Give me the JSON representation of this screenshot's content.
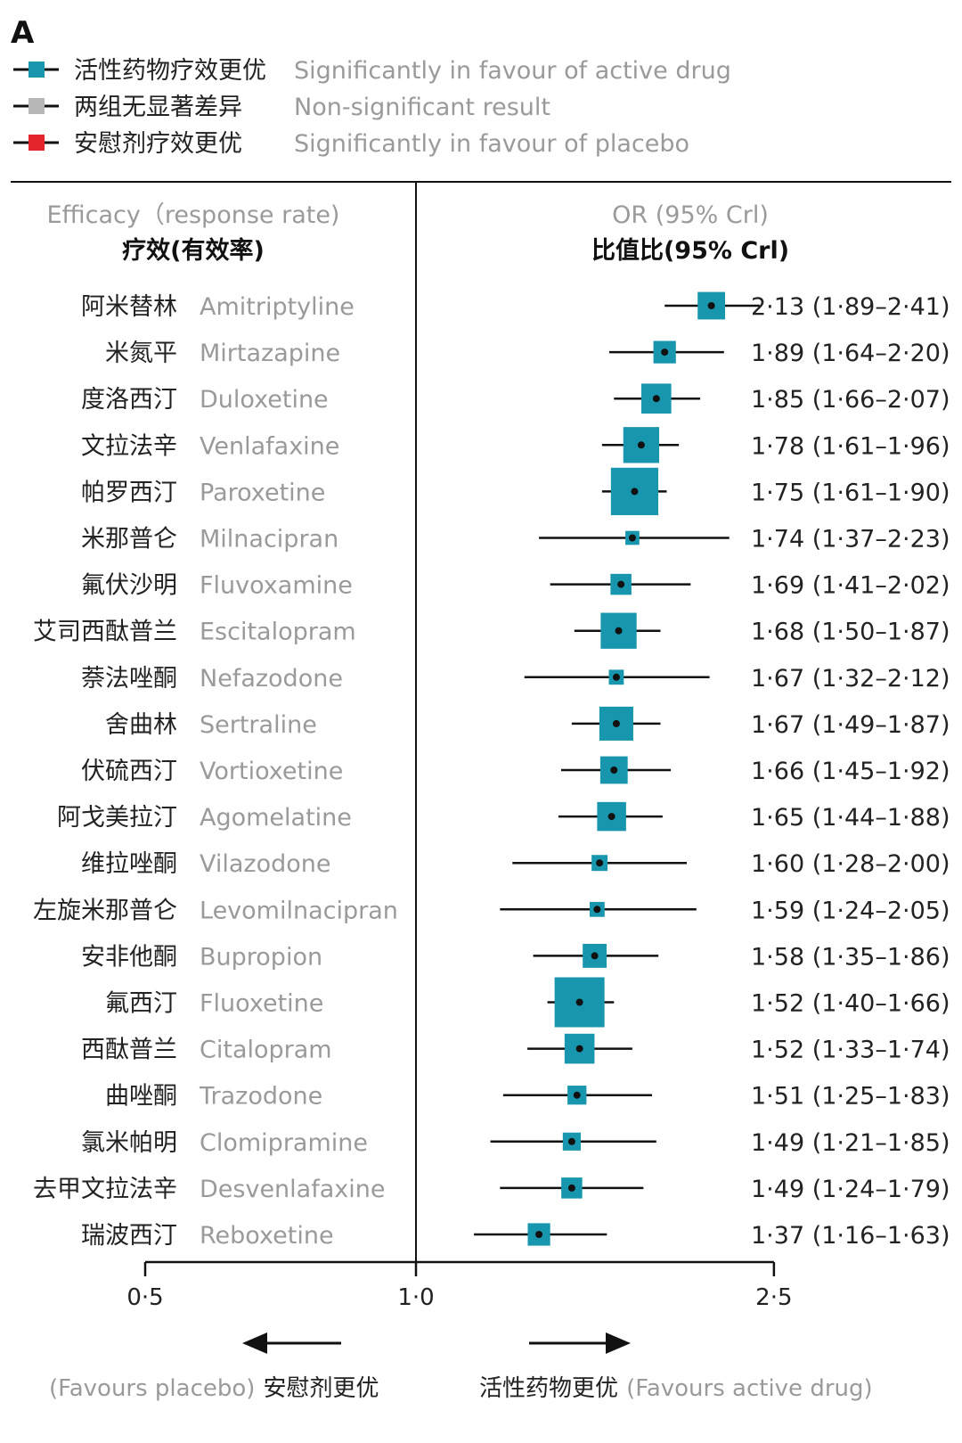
{
  "panel_label": "A",
  "legend": [
    {
      "zh": "活性药物疗效更优",
      "en": "Significantly in favour of active drug",
      "color": "#1796ae"
    },
    {
      "zh": "两组无显著差异",
      "en": "Non-significant result",
      "color": "#b7b7b7"
    },
    {
      "zh": "安慰剂疗效更优",
      "en": "Significantly in favour of placebo",
      "color": "#e4252b"
    }
  ],
  "headers": {
    "left_en": "Efficacy（response rate)",
    "left_zh": "疗效(有效率)",
    "right_en": "OR (95% Crl)",
    "right_zh": "比值比(95% Crl)"
  },
  "direction": {
    "left_en": "(Favours placebo)",
    "left_zh": "安慰剂更优",
    "right_zh": "活性药物更优",
    "right_en": "(Favours active drug)"
  },
  "chart_data": {
    "type": "forest",
    "x_scale": "log",
    "x_ticks": [
      0.5,
      1.0,
      2.5
    ],
    "x_tick_labels": [
      "0·5",
      "1·0",
      "2·5"
    ],
    "reference_line": 1.0,
    "marker_color": "#1796ae",
    "rows": [
      {
        "zh": "阿米替林",
        "en": "Amitriptyline",
        "or": 2.13,
        "lo": 1.89,
        "hi": 2.41,
        "label": "2·13 (1·89–2·41)",
        "box": 0.55
      },
      {
        "zh": "米氮平",
        "en": "Mirtazapine",
        "or": 1.89,
        "lo": 1.64,
        "hi": 2.2,
        "label": "1·89 (1·64–2·20)",
        "box": 0.45
      },
      {
        "zh": "度洛西汀",
        "en": "Duloxetine",
        "or": 1.85,
        "lo": 1.66,
        "hi": 2.07,
        "label": "1·85 (1·66–2·07)",
        "box": 0.6
      },
      {
        "zh": "文拉法辛",
        "en": "Venlafaxine",
        "or": 1.78,
        "lo": 1.61,
        "hi": 1.96,
        "label": "1·78 (1·61–1·96)",
        "box": 0.72
      },
      {
        "zh": "帕罗西汀",
        "en": "Paroxetine",
        "or": 1.75,
        "lo": 1.61,
        "hi": 1.9,
        "label": "1·75 (1·61–1·90)",
        "box": 0.95
      },
      {
        "zh": "米那普仑",
        "en": "Milnacipran",
        "or": 1.74,
        "lo": 1.37,
        "hi": 2.23,
        "label": "1·74 (1·37–2·23)",
        "box": 0.28
      },
      {
        "zh": "氟伏沙明",
        "en": "Fluvoxamine",
        "or": 1.69,
        "lo": 1.41,
        "hi": 2.02,
        "label": "1·69 (1·41–2·02)",
        "box": 0.42
      },
      {
        "zh": "艾司西酞普兰",
        "en": "Escitalopram",
        "or": 1.68,
        "lo": 1.5,
        "hi": 1.87,
        "label": "1·68 (1·50–1·87)",
        "box": 0.72
      },
      {
        "zh": "萘法唑酮",
        "en": "Nefazodone",
        "or": 1.67,
        "lo": 1.32,
        "hi": 2.12,
        "label": "1·67 (1·32–2·12)",
        "box": 0.3
      },
      {
        "zh": "舍曲林",
        "en": "Sertraline",
        "or": 1.67,
        "lo": 1.49,
        "hi": 1.87,
        "label": "1·67 (1·49–1·87)",
        "box": 0.68
      },
      {
        "zh": "伏硫西汀",
        "en": "Vortioxetine",
        "or": 1.66,
        "lo": 1.45,
        "hi": 1.92,
        "label": "1·66 (1·45–1·92)",
        "box": 0.55
      },
      {
        "zh": "阿戈美拉汀",
        "en": "Agomelatine",
        "or": 1.65,
        "lo": 1.44,
        "hi": 1.88,
        "label": "1·65 (1·44–1·88)",
        "box": 0.58
      },
      {
        "zh": "维拉唑酮",
        "en": "Vilazodone",
        "or": 1.6,
        "lo": 1.28,
        "hi": 2.0,
        "label": "1·60 (1·28–2·00)",
        "box": 0.32
      },
      {
        "zh": "左旋米那普仑",
        "en": "Levomilnacipran",
        "or": 1.59,
        "lo": 1.24,
        "hi": 2.05,
        "label": "1·59 (1·24–2·05)",
        "box": 0.3
      },
      {
        "zh": "安非他酮",
        "en": "Bupropion",
        "or": 1.58,
        "lo": 1.35,
        "hi": 1.86,
        "label": "1·58 (1·35–1·86)",
        "box": 0.48
      },
      {
        "zh": "氟西汀",
        "en": "Fluoxetine",
        "or": 1.52,
        "lo": 1.4,
        "hi": 1.66,
        "label": "1·52 (1·40–1·66)",
        "box": 1.0
      },
      {
        "zh": "西酞普兰",
        "en": "Citalopram",
        "or": 1.52,
        "lo": 1.33,
        "hi": 1.74,
        "label": "1·52 (1·33–1·74)",
        "box": 0.6
      },
      {
        "zh": "曲唑酮",
        "en": "Trazodone",
        "or": 1.51,
        "lo": 1.25,
        "hi": 1.83,
        "label": "1·51 (1·25–1·83)",
        "box": 0.38
      },
      {
        "zh": "氯米帕明",
        "en": "Clomipramine",
        "or": 1.49,
        "lo": 1.21,
        "hi": 1.85,
        "label": "1·49 (1·21–1·85)",
        "box": 0.36
      },
      {
        "zh": "去甲文拉法辛",
        "en": "Desvenlafaxine",
        "or": 1.49,
        "lo": 1.24,
        "hi": 1.79,
        "label": "1·49 (1·24–1·79)",
        "box": 0.42
      },
      {
        "zh": "瑞波西汀",
        "en": "Reboxetine",
        "or": 1.37,
        "lo": 1.16,
        "hi": 1.63,
        "label": "1·37 (1·16–1·63)",
        "box": 0.45
      }
    ]
  }
}
